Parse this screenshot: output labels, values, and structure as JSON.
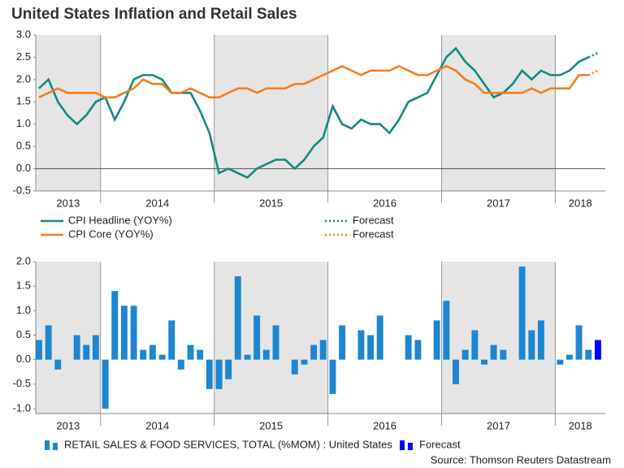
{
  "title": "United States Inflation and Retail Sales",
  "source": "Source: Thomson Reuters Datastream",
  "chart_data": [
    {
      "type": "line",
      "xlim": [
        2013.43,
        2018.44
      ],
      "ylim": [
        -0.5,
        3.0
      ],
      "yticks": [
        {
          "value": 3,
          "label": "3.0"
        },
        2.5,
        {
          "value": 2,
          "label": "2.0"
        },
        1.5,
        {
          "value": 1,
          "label": "1.0"
        },
        0.5,
        {
          "value": 0,
          "label": "0.0"
        },
        -0.5
      ],
      "years": [
        2013,
        2014,
        2015,
        2016,
        2017,
        2018
      ],
      "shade": "alternate-years",
      "zero_line": true,
      "x": [
        2013.458,
        2013.542,
        2013.625,
        2013.708,
        2013.792,
        2013.875,
        2013.958,
        2014.042,
        2014.125,
        2014.208,
        2014.292,
        2014.375,
        2014.458,
        2014.542,
        2014.625,
        2014.708,
        2014.792,
        2014.875,
        2014.958,
        2015.042,
        2015.125,
        2015.208,
        2015.292,
        2015.375,
        2015.458,
        2015.542,
        2015.625,
        2015.708,
        2015.792,
        2015.875,
        2015.958,
        2016.042,
        2016.125,
        2016.208,
        2016.292,
        2016.375,
        2016.458,
        2016.542,
        2016.625,
        2016.708,
        2016.792,
        2016.875,
        2016.958,
        2017.042,
        2017.125,
        2017.208,
        2017.292,
        2017.375,
        2017.458,
        2017.542,
        2017.625,
        2017.708,
        2017.792,
        2017.875,
        2017.958,
        2018.042,
        2018.125,
        2018.208,
        2018.292,
        2018.375
      ],
      "series": [
        {
          "name": "CPI Headline (YOY%)",
          "color": "#138a80",
          "style": "solid",
          "values": [
            1.8,
            2.0,
            1.5,
            1.2,
            1.0,
            1.2,
            1.5,
            1.6,
            1.1,
            1.5,
            2.0,
            2.1,
            2.1,
            2.0,
            1.7,
            1.7,
            1.7,
            1.3,
            0.8,
            -0.1,
            0.0,
            -0.1,
            -0.2,
            0.0,
            0.1,
            0.2,
            0.2,
            0.0,
            0.2,
            0.5,
            0.7,
            1.4,
            1.0,
            0.9,
            1.1,
            1.0,
            1.0,
            0.8,
            1.1,
            1.5,
            1.6,
            1.7,
            2.1,
            2.5,
            2.7,
            2.4,
            2.2,
            1.9,
            1.6,
            1.7,
            1.9,
            2.2,
            2.0,
            2.2,
            2.1,
            2.1,
            2.2,
            2.4,
            2.5,
            null
          ]
        },
        {
          "name": "Forecast",
          "color": "#138a80",
          "style": "dotted",
          "values": [
            null,
            null,
            null,
            null,
            null,
            null,
            null,
            null,
            null,
            null,
            null,
            null,
            null,
            null,
            null,
            null,
            null,
            null,
            null,
            null,
            null,
            null,
            null,
            null,
            null,
            null,
            null,
            null,
            null,
            null,
            null,
            null,
            null,
            null,
            null,
            null,
            null,
            null,
            null,
            null,
            null,
            null,
            null,
            null,
            null,
            null,
            null,
            null,
            null,
            null,
            null,
            null,
            null,
            null,
            null,
            null,
            null,
            null,
            2.5,
            2.6
          ]
        },
        {
          "name": "CPI Core (YOY%)",
          "color": "#f47d20",
          "style": "solid",
          "values": [
            1.6,
            1.7,
            1.8,
            1.7,
            1.7,
            1.7,
            1.7,
            1.6,
            1.6,
            1.7,
            1.8,
            2.0,
            1.9,
            1.9,
            1.7,
            1.7,
            1.8,
            1.7,
            1.6,
            1.6,
            1.7,
            1.8,
            1.8,
            1.7,
            1.8,
            1.8,
            1.8,
            1.9,
            1.9,
            2.0,
            2.1,
            2.2,
            2.3,
            2.2,
            2.1,
            2.2,
            2.2,
            2.2,
            2.3,
            2.2,
            2.1,
            2.1,
            2.2,
            2.3,
            2.2,
            2.0,
            1.9,
            1.7,
            1.7,
            1.7,
            1.7,
            1.7,
            1.8,
            1.7,
            1.8,
            1.8,
            1.8,
            2.1,
            2.1,
            null
          ]
        },
        {
          "name": "Forecast",
          "color": "#f47d20",
          "style": "dotted",
          "values": [
            null,
            null,
            null,
            null,
            null,
            null,
            null,
            null,
            null,
            null,
            null,
            null,
            null,
            null,
            null,
            null,
            null,
            null,
            null,
            null,
            null,
            null,
            null,
            null,
            null,
            null,
            null,
            null,
            null,
            null,
            null,
            null,
            null,
            null,
            null,
            null,
            null,
            null,
            null,
            null,
            null,
            null,
            null,
            null,
            null,
            null,
            null,
            null,
            null,
            null,
            null,
            null,
            null,
            null,
            null,
            null,
            null,
            null,
            2.1,
            2.2
          ]
        }
      ]
    },
    {
      "type": "bar",
      "xlim": [
        2013.43,
        2018.44
      ],
      "ylim": [
        -1.1,
        2.0
      ],
      "yticks": [
        {
          "value": 2,
          "label": "2.0"
        },
        1.5,
        {
          "value": 1,
          "label": "1.0"
        },
        0.5,
        {
          "value": 0,
          "label": "0.0"
        },
        -0.5,
        {
          "value": -1,
          "label": "-1.0"
        }
      ],
      "years": [
        2013,
        2014,
        2015,
        2016,
        2017,
        2018
      ],
      "shade": "alternate-years",
      "zero_line": false,
      "x": [
        2013.458,
        2013.542,
        2013.625,
        2013.708,
        2013.792,
        2013.875,
        2013.958,
        2014.042,
        2014.125,
        2014.208,
        2014.292,
        2014.375,
        2014.458,
        2014.542,
        2014.625,
        2014.708,
        2014.792,
        2014.875,
        2014.958,
        2015.042,
        2015.125,
        2015.208,
        2015.292,
        2015.375,
        2015.458,
        2015.542,
        2015.625,
        2015.708,
        2015.792,
        2015.875,
        2015.958,
        2016.042,
        2016.125,
        2016.208,
        2016.292,
        2016.375,
        2016.458,
        2016.542,
        2016.625,
        2016.708,
        2016.792,
        2016.875,
        2016.958,
        2017.042,
        2017.125,
        2017.208,
        2017.292,
        2017.375,
        2017.458,
        2017.542,
        2017.625,
        2017.708,
        2017.792,
        2017.875,
        2017.958,
        2018.042,
        2018.125,
        2018.208,
        2018.292,
        2018.375
      ],
      "series": [
        {
          "name": "RETAIL SALES & FOOD SERVICES, TOTAL (%MOM) : United States",
          "color": "#1c86d1",
          "values": [
            0.4,
            0.7,
            -0.2,
            0.0,
            0.5,
            0.3,
            0.5,
            -1.0,
            1.4,
            1.1,
            1.1,
            0.2,
            0.3,
            0.1,
            0.8,
            -0.2,
            0.3,
            0.2,
            -0.6,
            -0.6,
            -0.4,
            1.7,
            0.1,
            0.9,
            0.2,
            0.7,
            0.0,
            -0.3,
            -0.1,
            0.3,
            0.4,
            -0.7,
            0.7,
            0.0,
            0.6,
            0.5,
            0.9,
            0.0,
            0.0,
            0.5,
            0.4,
            0.0,
            0.8,
            1.2,
            -0.5,
            0.2,
            0.6,
            -0.1,
            0.3,
            0.2,
            0.0,
            1.9,
            0.6,
            0.8,
            0.0,
            -0.1,
            0.1,
            0.7,
            0.2,
            null
          ]
        },
        {
          "name": "Forecast",
          "color": "#0000ff",
          "values": [
            null,
            null,
            null,
            null,
            null,
            null,
            null,
            null,
            null,
            null,
            null,
            null,
            null,
            null,
            null,
            null,
            null,
            null,
            null,
            null,
            null,
            null,
            null,
            null,
            null,
            null,
            null,
            null,
            null,
            null,
            null,
            null,
            null,
            null,
            null,
            null,
            null,
            null,
            null,
            null,
            null,
            null,
            null,
            null,
            null,
            null,
            null,
            null,
            null,
            null,
            null,
            null,
            null,
            null,
            null,
            null,
            null,
            null,
            null,
            0.4
          ]
        }
      ]
    }
  ]
}
